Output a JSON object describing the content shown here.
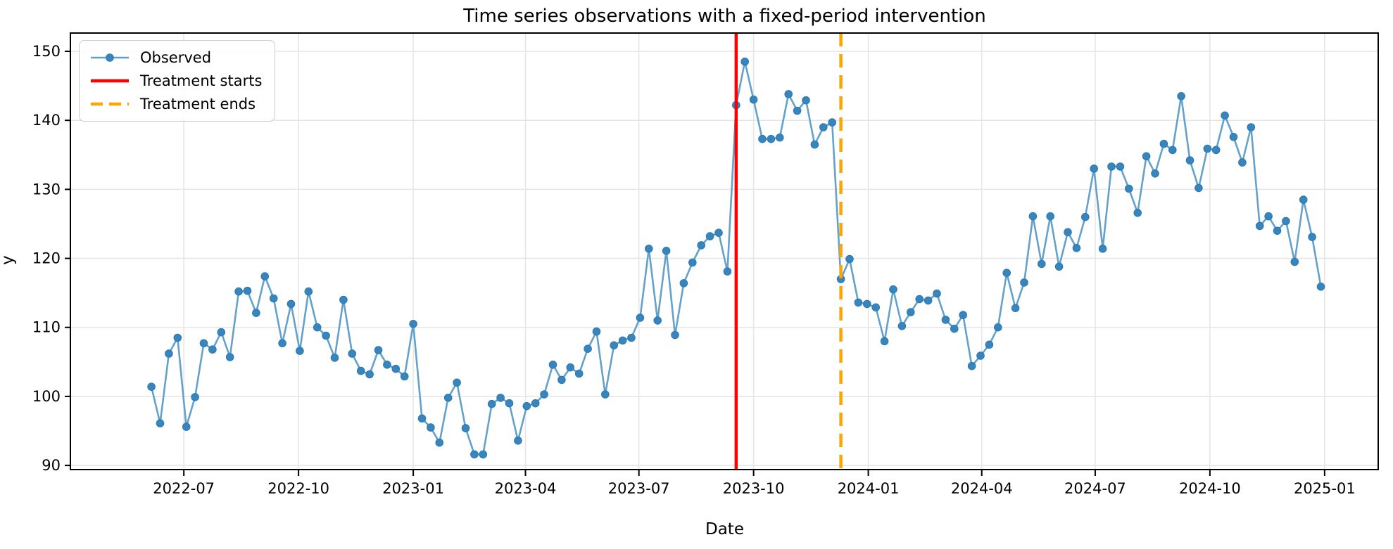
{
  "chart_data": {
    "type": "line",
    "title": "Time series observations with a fixed-period intervention",
    "xlabel": "Date",
    "ylabel": "y",
    "grid": true,
    "legend": {
      "position": "upper left",
      "entries": [
        {
          "label": "Observed",
          "color": "#62a0ca",
          "style": "solid",
          "marker": "circle"
        },
        {
          "label": "Treatment starts",
          "color": "#ff0000",
          "style": "solid",
          "marker": "none"
        },
        {
          "label": "Treatment ends",
          "color": "#ffa500",
          "style": "dashed",
          "marker": "none"
        }
      ]
    },
    "x_start_date": "2022-06-05",
    "x_step_days": 7,
    "n_points": 135,
    "series": [
      {
        "name": "Observed",
        "values": [
          101.4,
          96.1,
          106.2,
          108.5,
          95.6,
          99.9,
          107.7,
          106.8,
          109.3,
          105.7,
          115.2,
          115.3,
          112.1,
          117.4,
          114.2,
          107.7,
          113.4,
          106.6,
          115.2,
          110.0,
          108.8,
          105.6,
          114.0,
          106.2,
          103.7,
          103.2,
          106.7,
          104.6,
          104.0,
          102.9,
          110.5,
          96.8,
          95.5,
          93.3,
          99.8,
          102.0,
          95.4,
          91.6,
          91.6,
          98.9,
          99.8,
          99.0,
          93.6,
          98.6,
          99.0,
          100.3,
          104.6,
          102.4,
          104.2,
          103.3,
          106.9,
          109.4,
          100.3,
          107.4,
          108.1,
          108.5,
          111.4,
          121.4,
          111.0,
          121.1,
          108.9,
          116.4,
          119.4,
          121.9,
          123.2,
          123.7,
          118.1,
          142.2,
          148.5,
          143.0,
          137.3,
          137.3,
          137.5,
          143.8,
          141.4,
          142.9,
          136.5,
          139.0,
          139.7,
          117.0,
          119.9,
          113.6,
          113.4,
          112.9,
          108.0,
          115.5,
          110.2,
          112.2,
          114.1,
          113.9,
          114.9,
          111.1,
          109.8,
          111.8,
          104.4,
          105.9,
          107.5,
          110.0,
          117.9,
          112.8,
          116.5,
          126.1,
          119.2,
          126.1,
          118.8,
          123.8,
          121.5,
          126.0,
          133.0,
          121.4,
          133.3,
          133.3,
          130.1,
          126.6,
          134.8,
          132.3,
          136.6,
          135.7,
          143.5,
          134.2,
          130.2,
          135.9,
          135.7,
          140.7,
          137.6,
          133.9,
          139.0,
          124.7,
          126.1,
          124.0,
          125.4,
          119.5,
          128.5,
          123.1,
          115.9
        ]
      }
    ],
    "vlines": [
      {
        "name": "Treatment starts",
        "date": "2023-09-17",
        "color": "#ff0000",
        "style": "solid",
        "width": 4.5
      },
      {
        "name": "Treatment ends",
        "date": "2023-12-10",
        "color": "#ffa500",
        "style": "dashed",
        "width": 4.5
      }
    ],
    "xlim": [
      "2022-04-01",
      "2025-02-13"
    ],
    "ylim": [
      89.4,
      152.65
    ],
    "xticks": [
      {
        "date": "2022-07-01",
        "label": "2022-07"
      },
      {
        "date": "2022-10-01",
        "label": "2022-10"
      },
      {
        "date": "2023-01-01",
        "label": "2023-01"
      },
      {
        "date": "2023-04-01",
        "label": "2023-04"
      },
      {
        "date": "2023-07-01",
        "label": "2023-07"
      },
      {
        "date": "2023-10-01",
        "label": "2023-10"
      },
      {
        "date": "2024-01-01",
        "label": "2024-01"
      },
      {
        "date": "2024-04-01",
        "label": "2024-04"
      },
      {
        "date": "2024-07-01",
        "label": "2024-07"
      },
      {
        "date": "2024-10-01",
        "label": "2024-10"
      },
      {
        "date": "2025-01-01",
        "label": "2025-01"
      }
    ],
    "yticks": [
      90,
      100,
      110,
      120,
      130,
      140,
      150
    ]
  },
  "style_colors": {
    "observed_line": "#64a1cb",
    "marker_fill": "#3884bc",
    "marker_edge": "#2b7ab1",
    "gridline": "#e6e6e6",
    "spine": "#000000",
    "treatment_start": "#ff0000",
    "treatment_end": "#ffa500"
  }
}
